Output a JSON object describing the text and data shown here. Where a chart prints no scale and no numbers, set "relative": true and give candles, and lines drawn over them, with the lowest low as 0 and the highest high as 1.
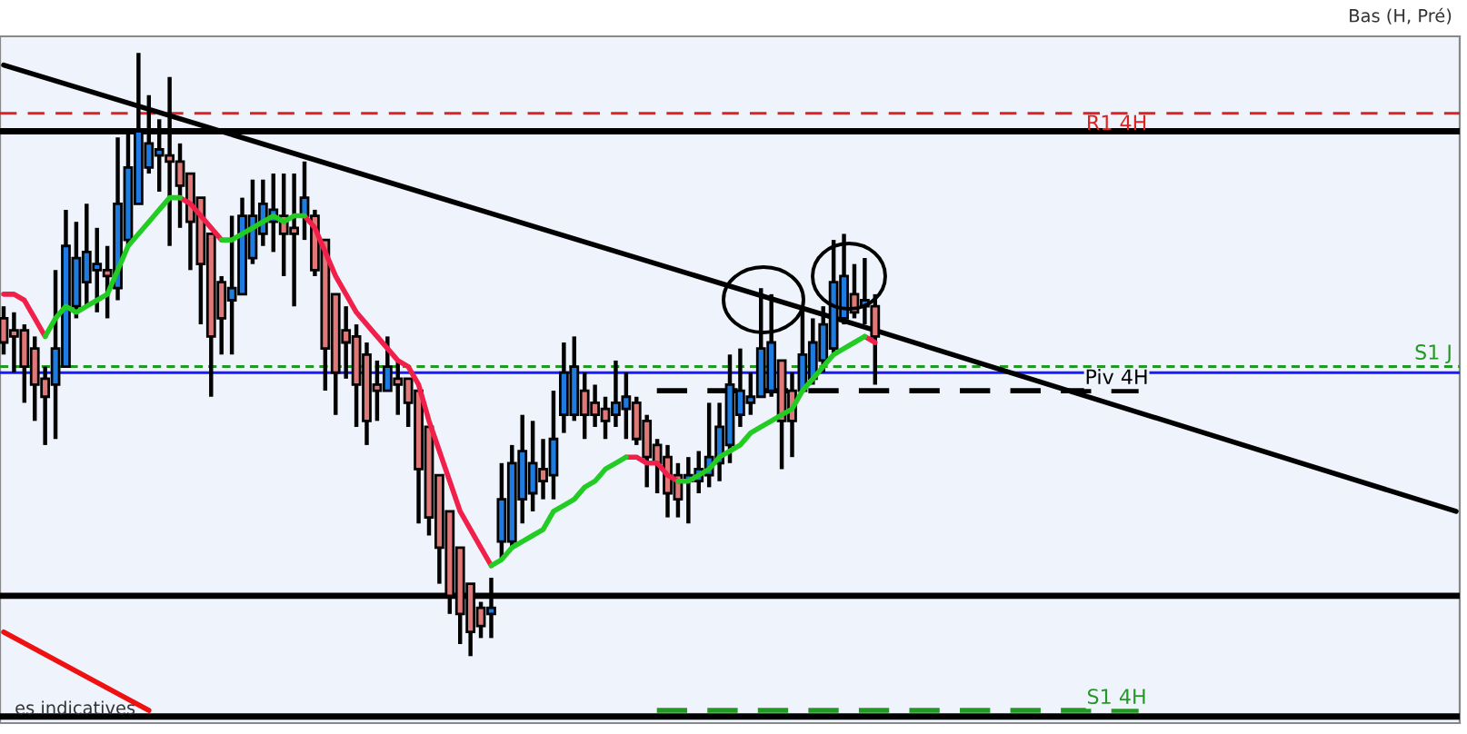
{
  "chart_data": {
    "type": "candlestick",
    "relative": true,
    "legend": false,
    "annotations": [
      "Bas (H, Pré)",
      "es indicatives"
    ],
    "categories": [
      null,
      null,
      null,
      null,
      null,
      null,
      null,
      null,
      null,
      null,
      null,
      null,
      null,
      null,
      null,
      null,
      null,
      null,
      null,
      null,
      null,
      null,
      null,
      null,
      null,
      null,
      null,
      null,
      null,
      null,
      null,
      null,
      null,
      null,
      null,
      null,
      null,
      null,
      null,
      null,
      null,
      null,
      null,
      null,
      null,
      null,
      null,
      null,
      null,
      null,
      null,
      null,
      null,
      null,
      null,
      null,
      null,
      null,
      null,
      null,
      null,
      null,
      null,
      null,
      null,
      null,
      null,
      null,
      null,
      null,
      null,
      null,
      null,
      null,
      null,
      null,
      null,
      null,
      null,
      null,
      null,
      null,
      null,
      null,
      null,
      null,
      null,
      null,
      null,
      null,
      null,
      null,
      null,
      null,
      null,
      null,
      null,
      null,
      null,
      null,
      null,
      null,
      null,
      null,
      null,
      null,
      null,
      null,
      null,
      null,
      null,
      null,
      null,
      null,
      null,
      null,
      null,
      null,
      null,
      null,
      null,
      null,
      null,
      null,
      null,
      null,
      null,
      null,
      null,
      null,
      null,
      null,
      null,
      null,
      null,
      null,
      null,
      null,
      null,
      null,
      null
    ],
    "ohlc": [
      [
        0.56,
        0.58,
        0.5,
        0.52
      ],
      [
        0.54,
        0.57,
        0.47,
        0.53
      ],
      [
        0.54,
        0.55,
        0.42,
        0.48
      ],
      [
        0.51,
        0.53,
        0.39,
        0.45
      ],
      [
        0.46,
        0.48,
        0.35,
        0.43
      ],
      [
        0.45,
        0.64,
        0.36,
        0.51
      ],
      [
        0.48,
        0.74,
        0.48,
        0.68
      ],
      [
        0.58,
        0.72,
        0.56,
        0.66
      ],
      [
        0.62,
        0.75,
        0.58,
        0.67
      ],
      [
        0.64,
        0.71,
        0.57,
        0.65
      ],
      [
        0.64,
        0.68,
        0.56,
        0.63
      ],
      [
        0.61,
        0.86,
        0.59,
        0.75
      ],
      [
        0.69,
        0.87,
        0.68,
        0.81
      ],
      [
        0.75,
        1.0,
        0.75,
        0.87
      ],
      [
        0.81,
        0.93,
        0.8,
        0.85
      ],
      [
        0.83,
        0.89,
        0.77,
        0.84
      ],
      [
        0.83,
        0.96,
        0.68,
        0.82
      ],
      [
        0.82,
        0.85,
        0.71,
        0.78
      ],
      [
        0.8,
        0.8,
        0.64,
        0.72
      ],
      [
        0.76,
        0.76,
        0.55,
        0.65
      ],
      [
        0.7,
        0.7,
        0.43,
        0.53
      ],
      [
        0.62,
        0.63,
        0.5,
        0.56
      ],
      [
        0.59,
        0.73,
        0.5,
        0.61
      ],
      [
        0.6,
        0.76,
        0.6,
        0.73
      ],
      [
        0.66,
        0.79,
        0.65,
        0.73
      ],
      [
        0.7,
        0.79,
        0.68,
        0.75
      ],
      [
        0.72,
        0.8,
        0.67,
        0.74
      ],
      [
        0.73,
        0.8,
        0.63,
        0.7
      ],
      [
        0.71,
        0.8,
        0.58,
        0.7
      ],
      [
        0.73,
        0.82,
        0.69,
        0.76
      ],
      [
        0.73,
        0.74,
        0.63,
        0.64
      ],
      [
        0.69,
        0.69,
        0.44,
        0.51
      ],
      [
        0.6,
        0.6,
        0.4,
        0.47
      ],
      [
        0.54,
        0.58,
        0.46,
        0.52
      ],
      [
        0.53,
        0.55,
        0.38,
        0.45
      ],
      [
        0.5,
        0.52,
        0.35,
        0.39
      ],
      [
        0.45,
        0.49,
        0.39,
        0.44
      ],
      [
        0.44,
        0.53,
        0.44,
        0.48
      ],
      [
        0.46,
        0.49,
        0.4,
        0.45
      ],
      [
        0.46,
        0.46,
        0.38,
        0.42
      ],
      [
        0.44,
        0.44,
        0.22,
        0.31
      ],
      [
        0.38,
        0.38,
        0.2,
        0.23
      ],
      [
        0.3,
        0.3,
        0.12,
        0.18
      ],
      [
        0.24,
        0.24,
        0.07,
        0.1
      ],
      [
        0.18,
        0.18,
        0.02,
        0.07
      ],
      [
        0.12,
        0.12,
        0.0,
        0.04
      ],
      [
        0.08,
        0.09,
        0.03,
        0.05
      ],
      [
        0.07,
        0.13,
        0.03,
        0.08
      ],
      [
        0.19,
        0.32,
        0.16,
        0.26
      ],
      [
        0.19,
        0.35,
        0.18,
        0.32
      ],
      [
        0.26,
        0.4,
        0.22,
        0.34
      ],
      [
        0.27,
        0.39,
        0.24,
        0.32
      ],
      [
        0.31,
        0.36,
        0.26,
        0.29
      ],
      [
        0.3,
        0.44,
        0.26,
        0.36
      ],
      [
        0.4,
        0.52,
        0.37,
        0.47
      ],
      [
        0.4,
        0.53,
        0.39,
        0.48
      ],
      [
        0.44,
        0.47,
        0.36,
        0.4
      ],
      [
        0.42,
        0.45,
        0.38,
        0.4
      ],
      [
        0.41,
        0.43,
        0.36,
        0.39
      ],
      [
        0.4,
        0.49,
        0.38,
        0.42
      ],
      [
        0.41,
        0.47,
        0.36,
        0.43
      ],
      [
        0.42,
        0.43,
        0.35,
        0.36
      ],
      [
        0.39,
        0.4,
        0.28,
        0.33
      ],
      [
        0.35,
        0.36,
        0.27,
        0.32
      ],
      [
        0.33,
        0.35,
        0.23,
        0.27
      ],
      [
        0.3,
        0.32,
        0.23,
        0.26
      ],
      [
        0.29,
        0.33,
        0.22,
        0.3
      ],
      [
        0.29,
        0.34,
        0.27,
        0.31
      ],
      [
        0.3,
        0.42,
        0.28,
        0.33
      ],
      [
        0.32,
        0.42,
        0.29,
        0.38
      ],
      [
        0.35,
        0.5,
        0.32,
        0.45
      ],
      [
        0.4,
        0.51,
        0.38,
        0.44
      ],
      [
        0.42,
        0.47,
        0.4,
        0.43
      ],
      [
        0.43,
        0.61,
        0.43,
        0.51
      ],
      [
        0.44,
        0.6,
        0.43,
        0.52
      ],
      [
        0.49,
        0.49,
        0.31,
        0.39
      ],
      [
        0.44,
        0.47,
        0.33,
        0.39
      ],
      [
        0.44,
        0.58,
        0.44,
        0.5
      ],
      [
        0.46,
        0.56,
        0.45,
        0.52
      ],
      [
        0.49,
        0.58,
        0.47,
        0.55
      ],
      [
        0.51,
        0.69,
        0.5,
        0.62
      ],
      [
        0.56,
        0.7,
        0.55,
        0.63
      ],
      [
        0.6,
        0.65,
        0.56,
        0.57
      ],
      [
        0.58,
        0.66,
        0.55,
        0.59
      ],
      [
        0.58,
        0.6,
        0.45,
        0.53
      ],
      null,
      null,
      null,
      null,
      null,
      null,
      null,
      null,
      null,
      null,
      null,
      null,
      null,
      null,
      null,
      null,
      null,
      null,
      null,
      null,
      null,
      null,
      null,
      null,
      null,
      null,
      null,
      null,
      null,
      null,
      null,
      null,
      null,
      null,
      null,
      null,
      null,
      null,
      null,
      null,
      null,
      null,
      null,
      null,
      null,
      null,
      null,
      null,
      null,
      null,
      null,
      null,
      null,
      null,
      null,
      null
    ],
    "colors": [
      "#e07878",
      "#e07878",
      "#e07878",
      "#e07878",
      "#e07878",
      "#1e7be0",
      "#1e7be0",
      "#1e7be0",
      "#1e7be0",
      "#1e7be0",
      "#e07878",
      "#1e7be0",
      "#1e7be0",
      "#1e7be0",
      "#1e7be0",
      "#1e7be0",
      "#e07878",
      "#e07878",
      "#e07878",
      "#e07878",
      "#e07878",
      "#e07878",
      "#1e7be0",
      "#1e7be0",
      "#1e7be0",
      "#1e7be0",
      "#1e7be0",
      "#e07878",
      "#e07878",
      "#1e7be0",
      "#e07878",
      "#e07878",
      "#e07878",
      "#e07878",
      "#e07878",
      "#e07878",
      "#e07878",
      "#1e7be0",
      "#e07878",
      "#e07878",
      "#e07878",
      "#e07878",
      "#e07878",
      "#e07878",
      "#e07878",
      "#e07878",
      "#e07878",
      "#1e7be0",
      "#1e7be0",
      "#1e7be0",
      "#1e7be0",
      "#1e7be0",
      "#e07878",
      "#1e7be0",
      "#1e7be0",
      "#1e7be0",
      "#e07878",
      "#e07878",
      "#e07878",
      "#1e7be0",
      "#1e7be0",
      "#e07878",
      "#e07878",
      "#e07878",
      "#e07878",
      "#e07878",
      "#1e7be0",
      "#1e7be0",
      "#1e7be0",
      "#1e7be0",
      "#1e7be0",
      "#1e7be0",
      "#1e7be0",
      "#1e7be0",
      "#1e7be0",
      "#e07878",
      "#e07878",
      "#1e7be0",
      "#1e7be0",
      "#1e7be0",
      "#1e7be0",
      "#1e7be0",
      "#e07878",
      "#1e7be0",
      "#e07878",
      null,
      null,
      null,
      null,
      null,
      null,
      null,
      null,
      null,
      null,
      null,
      null,
      null,
      null,
      null,
      null,
      null,
      null,
      null,
      null,
      null,
      null,
      null,
      null,
      null,
      null,
      null,
      null,
      null,
      null,
      null,
      null,
      null,
      null,
      null,
      null,
      null,
      null,
      null,
      null,
      null,
      null,
      null,
      null,
      null,
      null,
      null,
      null,
      null,
      null,
      null,
      null,
      null,
      null,
      null,
      null
    ],
    "series": [
      {
        "type": "line",
        "color": "#f0204a",
        "values": [
          0.6,
          0.6,
          0.59,
          0.56,
          0.53,
          null,
          null,
          null,
          null,
          null,
          null,
          null,
          null,
          null,
          null,
          null,
          null,
          0.76,
          0.75,
          0.73,
          0.71,
          0.69,
          null,
          null,
          null,
          null,
          null,
          null,
          null,
          0.73,
          0.71,
          0.67,
          0.63,
          0.6,
          0.57,
          0.55,
          0.53,
          0.51,
          0.49,
          0.48,
          0.45,
          0.39,
          0.34,
          0.29,
          0.24,
          0.21,
          0.18,
          0.15,
          null,
          null,
          null,
          null,
          null,
          null,
          null,
          null,
          null,
          null,
          null,
          null,
          0.33,
          0.33,
          0.32,
          0.32,
          0.3,
          0.29,
          null,
          null,
          null,
          null,
          null,
          null,
          null,
          null,
          null,
          null,
          null,
          null,
          null,
          null,
          null,
          null,
          null,
          0.53,
          0.52,
          null,
          null,
          null,
          null,
          null,
          null,
          null,
          null,
          null,
          null,
          null,
          null,
          null,
          null,
          null,
          null,
          null,
          null,
          null,
          null,
          null,
          null,
          null,
          null,
          null,
          null,
          null,
          null,
          null,
          null,
          null,
          null,
          null,
          null,
          null,
          null,
          null,
          null,
          null,
          null,
          null,
          null,
          null,
          null,
          null,
          null,
          null,
          null,
          null,
          null,
          null,
          null,
          null,
          null,
          null,
          null
        ]
      },
      {
        "type": "line",
        "color": "#22cc22",
        "values": [
          null,
          null,
          null,
          null,
          0.53,
          0.56,
          0.58,
          0.57,
          0.58,
          0.59,
          0.6,
          0.64,
          0.68,
          0.7,
          0.72,
          0.74,
          0.76,
          0.76,
          null,
          null,
          null,
          0.69,
          0.69,
          0.7,
          0.71,
          0.72,
          0.73,
          0.72,
          0.73,
          0.73,
          null,
          null,
          null,
          null,
          null,
          null,
          null,
          null,
          null,
          null,
          null,
          null,
          null,
          null,
          null,
          null,
          null,
          0.15,
          0.16,
          0.18,
          0.19,
          0.2,
          0.21,
          0.24,
          0.25,
          0.26,
          0.28,
          0.29,
          0.31,
          0.32,
          0.33,
          null,
          null,
          null,
          null,
          0.29,
          0.29,
          0.3,
          0.31,
          0.33,
          0.34,
          0.35,
          0.37,
          0.38,
          0.39,
          0.4,
          0.41,
          0.44,
          0.46,
          0.48,
          0.5,
          0.51,
          0.52,
          0.53,
          null,
          null,
          null,
          null,
          null,
          null,
          null,
          null,
          null,
          null,
          null,
          null,
          null,
          null,
          null,
          null,
          null,
          null,
          null,
          null,
          null,
          null,
          null,
          null,
          null,
          null,
          null,
          null,
          null,
          null,
          null,
          null,
          null,
          null,
          null,
          null,
          null,
          null,
          null,
          null,
          null,
          null,
          null,
          null,
          null,
          null,
          null,
          null,
          null,
          null,
          null,
          null,
          null,
          null,
          null,
          null,
          null
        ]
      },
      {
        "type": "line",
        "color": "#000000",
        "values": [
          0.98,
          null,
          null,
          null,
          null,
          null,
          null,
          null,
          null,
          null,
          null,
          null,
          null,
          null,
          null,
          null,
          null,
          null,
          null,
          null,
          null,
          null,
          null,
          null,
          null,
          null,
          null,
          null,
          null,
          null,
          null,
          null,
          null,
          null,
          null,
          null,
          null,
          null,
          null,
          null,
          null,
          null,
          null,
          null,
          null,
          null,
          null,
          null,
          null,
          null,
          null,
          null,
          null,
          null,
          null,
          null,
          null,
          null,
          null,
          null,
          null,
          null,
          null,
          null,
          null,
          null,
          null,
          null,
          null,
          null,
          null,
          null,
          null,
          null,
          null,
          null,
          null,
          null,
          null,
          null,
          null,
          null,
          null,
          null,
          0.54,
          null,
          null,
          null,
          null,
          null,
          null,
          null,
          null,
          null,
          null,
          null,
          null,
          null,
          null,
          null,
          null,
          null,
          null,
          null,
          null,
          null,
          null,
          null,
          null,
          null,
          null,
          null,
          null,
          null,
          null,
          null,
          null,
          null,
          null,
          null,
          null,
          null,
          null,
          null,
          null,
          null,
          null,
          null,
          null,
          null,
          null,
          null,
          null,
          null,
          null,
          null,
          null,
          null,
          null,
          null,
          0.24
        ]
      },
      {
        "type": "line",
        "color": "#ee1111",
        "values": [
          0.04,
          null,
          null,
          null,
          null,
          null,
          null,
          null,
          null,
          null,
          null,
          null,
          null,
          null,
          -0.09,
          null,
          null,
          null,
          null,
          null,
          null,
          null,
          null,
          null,
          null,
          null,
          null,
          null,
          null,
          null,
          null,
          null,
          null,
          null,
          null,
          null,
          null,
          null,
          null,
          null,
          null,
          null,
          null,
          null,
          null,
          null,
          null,
          null,
          null,
          null,
          null,
          null,
          null,
          null,
          null,
          null,
          null,
          null,
          null,
          null,
          null,
          null,
          null,
          null,
          null,
          null,
          null,
          null,
          null,
          null,
          null,
          null,
          null,
          null,
          null,
          null,
          null,
          null,
          null,
          null,
          null,
          null,
          null,
          null,
          null,
          null,
          null,
          null,
          null,
          null,
          null,
          null,
          null,
          null,
          null,
          null,
          null,
          null,
          null,
          null,
          null,
          null,
          null,
          null,
          null,
          null,
          null,
          null,
          null,
          null,
          null,
          null,
          null,
          null,
          null,
          null,
          null,
          null,
          null,
          null,
          null,
          null,
          null,
          null,
          null,
          null,
          null,
          null,
          null,
          null,
          null,
          null,
          null,
          null,
          null,
          null,
          null,
          null,
          null,
          null,
          null
        ]
      }
    ],
    "ref_lines": [
      {
        "axis": "y",
        "value": 0.9,
        "label": "R1 4H",
        "color": "#dd2222",
        "line_style": "dashed"
      },
      {
        "axis": "y",
        "value": 0.87,
        "color": "#000000",
        "line_style": "solid"
      },
      {
        "axis": "y",
        "value": 0.48,
        "label": "S1 J",
        "color": "#229922",
        "line_style": "dotted"
      },
      {
        "axis": "y",
        "value": 0.47,
        "color": "#1a1aff",
        "line_style": "solid"
      },
      {
        "axis": "y",
        "value": 0.1,
        "color": "#000000",
        "line_style": "solid"
      },
      {
        "axis": "y",
        "value": -0.1,
        "color": "#000000",
        "line_style": "solid"
      },
      {
        "axis": "y",
        "value": 0.44,
        "label": "Piv 4H",
        "color": "#000000",
        "line_style": "dashed"
      },
      {
        "axis": "y",
        "value": -0.09,
        "label": "S1 4H",
        "color": "#229922",
        "line_style": "dashed"
      }
    ]
  }
}
